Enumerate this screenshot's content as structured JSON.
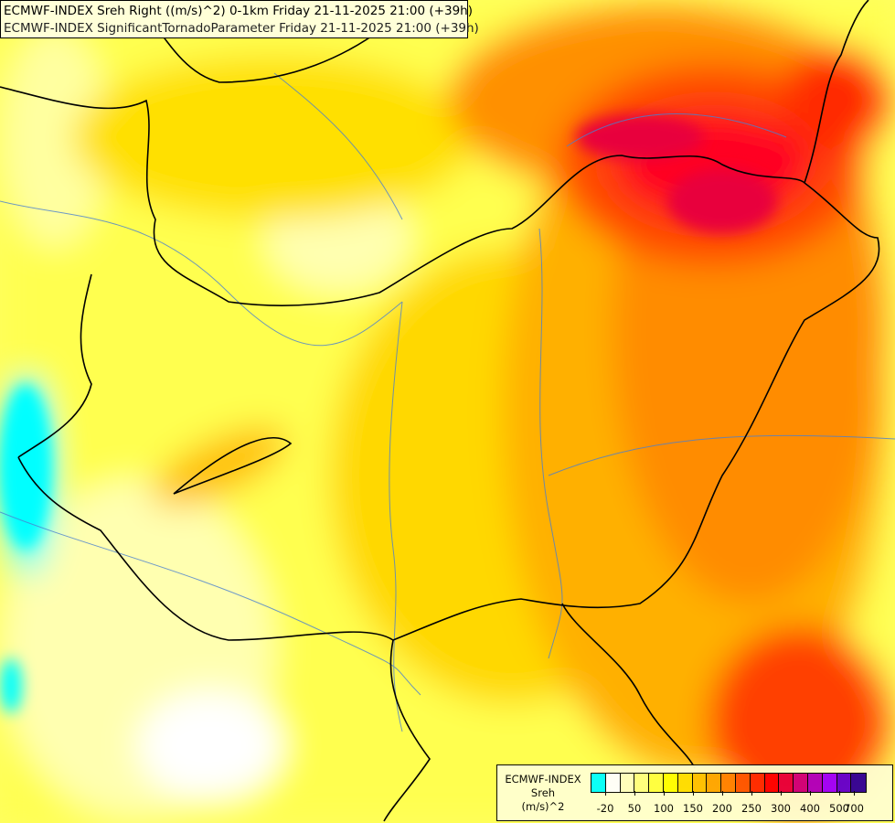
{
  "title_lines": [
    "ECMWF-INDEX Sreh Right ((m/s)^2) 0-1km Friday 21-11-2025 21:00 (+39h)",
    "ECMWF-INDEX SignificantTornadoParameter Friday 21-11-2025 21:00 (+39h)"
  ],
  "legend": {
    "name_lines": [
      "ECMWF-INDEX",
      "Sreh",
      "(m/s)^2"
    ],
    "colors": [
      "#00ffff",
      "#ffffff",
      "#ffffc0",
      "#ffff80",
      "#ffff40",
      "#ffff00",
      "#ffdd00",
      "#ffc000",
      "#ffa500",
      "#ff8000",
      "#ff5500",
      "#ff2a00",
      "#ff0000",
      "#e8003c",
      "#d0007c",
      "#b000c0",
      "#a000ff",
      "#6400d0",
      "#300098"
    ],
    "end_color": "#000070",
    "labels": [
      "-20",
      "50",
      "100",
      "150",
      "200",
      "250",
      "300",
      "400",
      "500",
      "700"
    ]
  }
}
